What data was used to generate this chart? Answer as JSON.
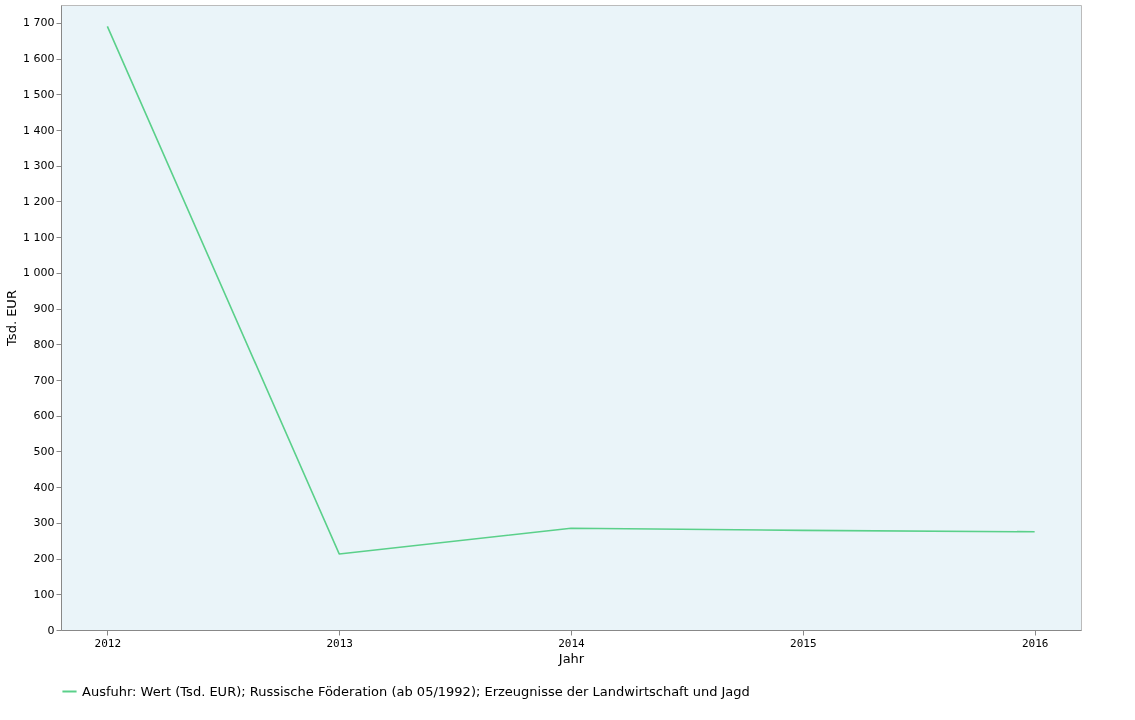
{
  "chart_data": {
    "type": "line",
    "xlabel": "Jahr",
    "ylabel": "Tsd. EUR",
    "categories": [
      "2012",
      "2013",
      "2014",
      "2015",
      "2016"
    ],
    "series": [
      {
        "name": "Ausfuhr: Wert (Tsd. EUR); Russische Föderation (ab 05/1992); Erzeugnisse der Landwirtschaft und Jagd",
        "color": "#5ad08a",
        "values": [
          1690,
          213,
          285,
          279,
          275
        ]
      }
    ],
    "ylim": [
      0,
      1750
    ],
    "yticks": [
      0,
      100,
      200,
      300,
      400,
      500,
      600,
      700,
      800,
      900,
      {
        "value": 1000,
        "label": "1 000"
      },
      {
        "value": 1100,
        "label": "1 100"
      },
      {
        "value": 1200,
        "label": "1 200"
      },
      {
        "value": 1300,
        "label": "1 300"
      },
      {
        "value": 1400,
        "label": "1 400"
      },
      {
        "value": 1500,
        "label": "1 500"
      },
      {
        "value": 1600,
        "label": "1 600"
      },
      {
        "value": 1700,
        "label": "1 700"
      }
    ],
    "grid": false,
    "legend": "bottom",
    "marker": "none",
    "line_style": "solid"
  }
}
